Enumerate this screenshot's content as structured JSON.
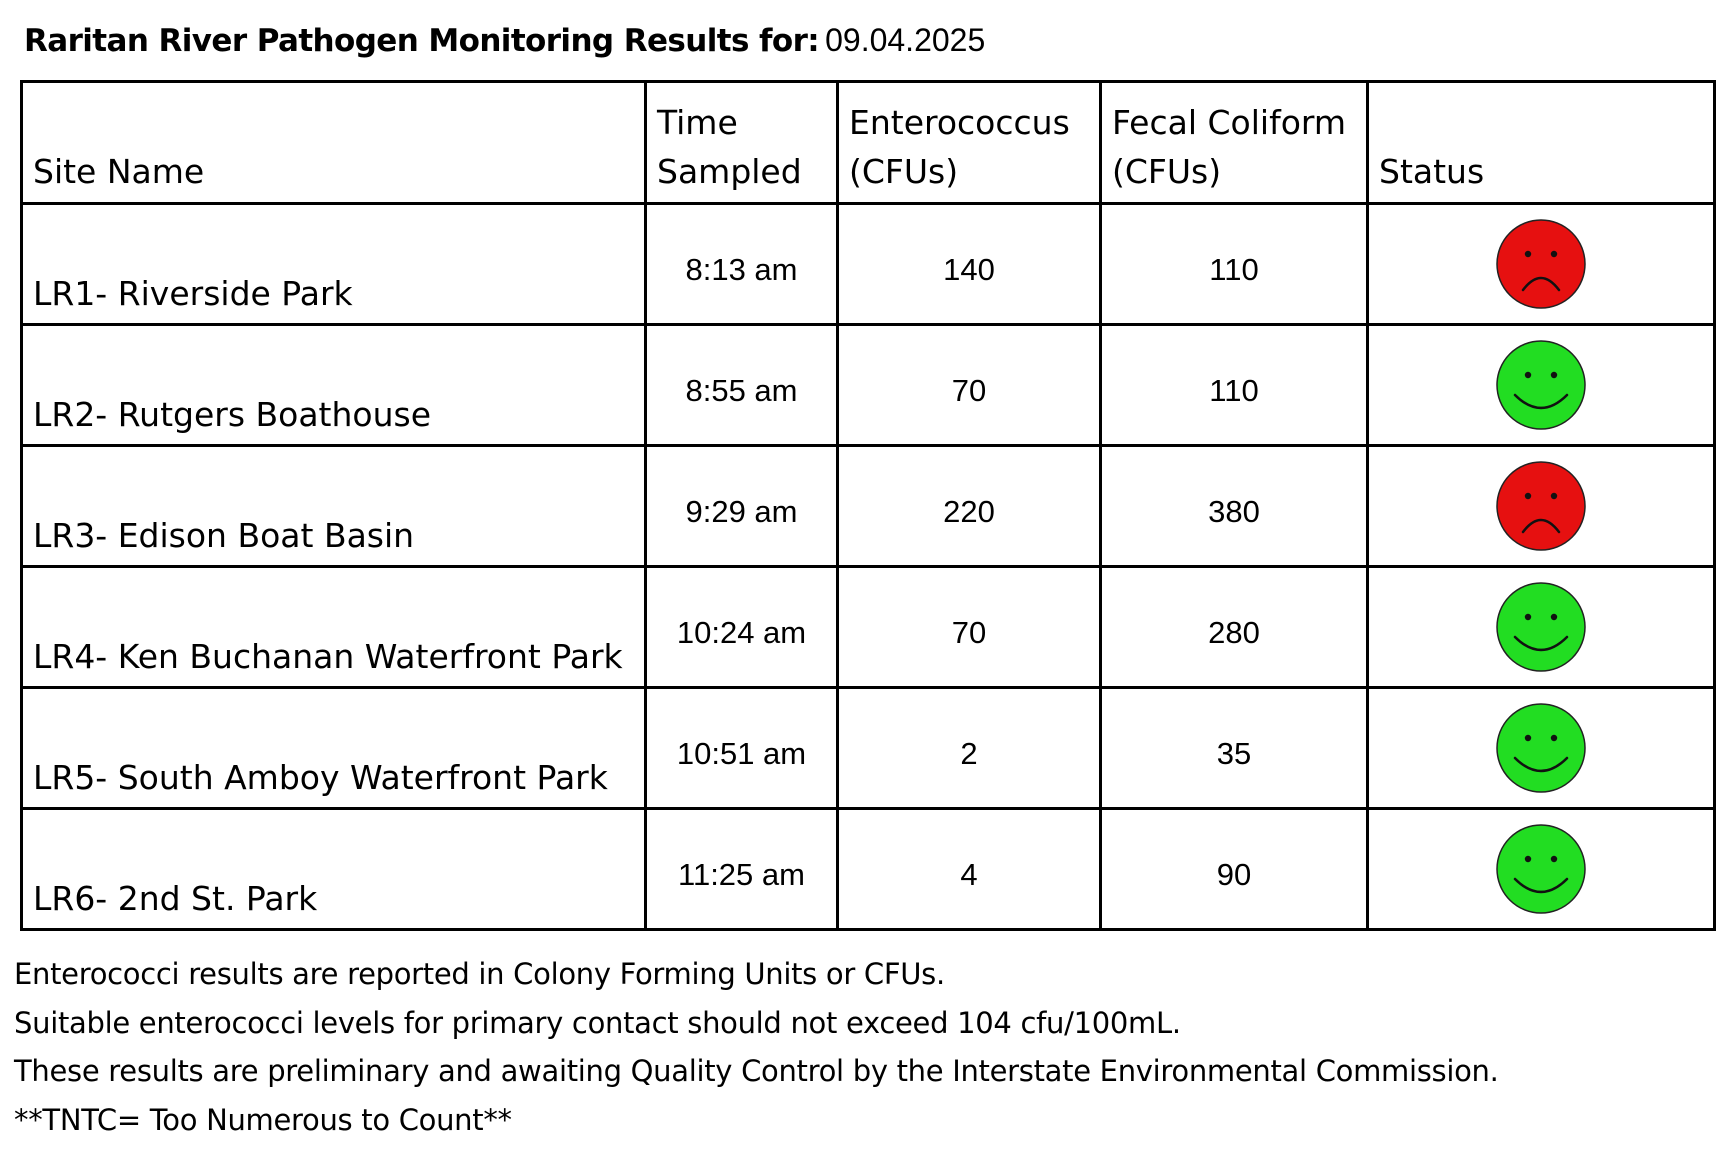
{
  "title": {
    "label": "Raritan River Pathogen Monitoring Results for:",
    "date": "09.04.2025"
  },
  "columns": {
    "site": "Site Name",
    "time_line1": "Time",
    "time_line2": "Sampled",
    "entero_line1": "Enterococcus",
    "entero_line2": "(CFUs)",
    "fecal_line1": "Fecal Coliform",
    "fecal_line2": "(CFUs)",
    "status": "Status"
  },
  "rows": [
    {
      "site": "LR1- Riverside Park",
      "time": "8:13 am",
      "enterococcus": "140",
      "fecal": "110",
      "status": "bad"
    },
    {
      "site": "LR2- Rutgers Boathouse",
      "time": "8:55 am",
      "enterococcus": "70",
      "fecal": "110",
      "status": "good"
    },
    {
      "site": "LR3- Edison Boat Basin",
      "time": "9:29 am",
      "enterococcus": "220",
      "fecal": "380",
      "status": "bad"
    },
    {
      "site": "LR4- Ken Buchanan Waterfront Park",
      "time": "10:24 am",
      "enterococcus": "70",
      "fecal": "280",
      "status": "good"
    },
    {
      "site": "LR5- South Amboy Waterfront Park",
      "time": "10:51 am",
      "enterococcus": "2",
      "fecal": "35",
      "status": "good"
    },
    {
      "site": "LR6- 2nd St. Park",
      "time": "11:25 am",
      "enterococcus": "4",
      "fecal": "90",
      "status": "good"
    }
  ],
  "status_icons": {
    "good": {
      "icon": "smiley-face-icon",
      "color": "#22dd22"
    },
    "bad": {
      "icon": "frowny-face-icon",
      "color": "#e61010"
    }
  },
  "notes": [
    "Enterococci results are reported in Colony Forming Units or CFUs.",
    "Suitable enterococci levels for primary contact should not exceed 104 cfu/100mL.",
    "These results are preliminary and awaiting Quality Control by the Interstate Environmental Commission.",
    "**TNTC= Too Numerous to Count**"
  ]
}
